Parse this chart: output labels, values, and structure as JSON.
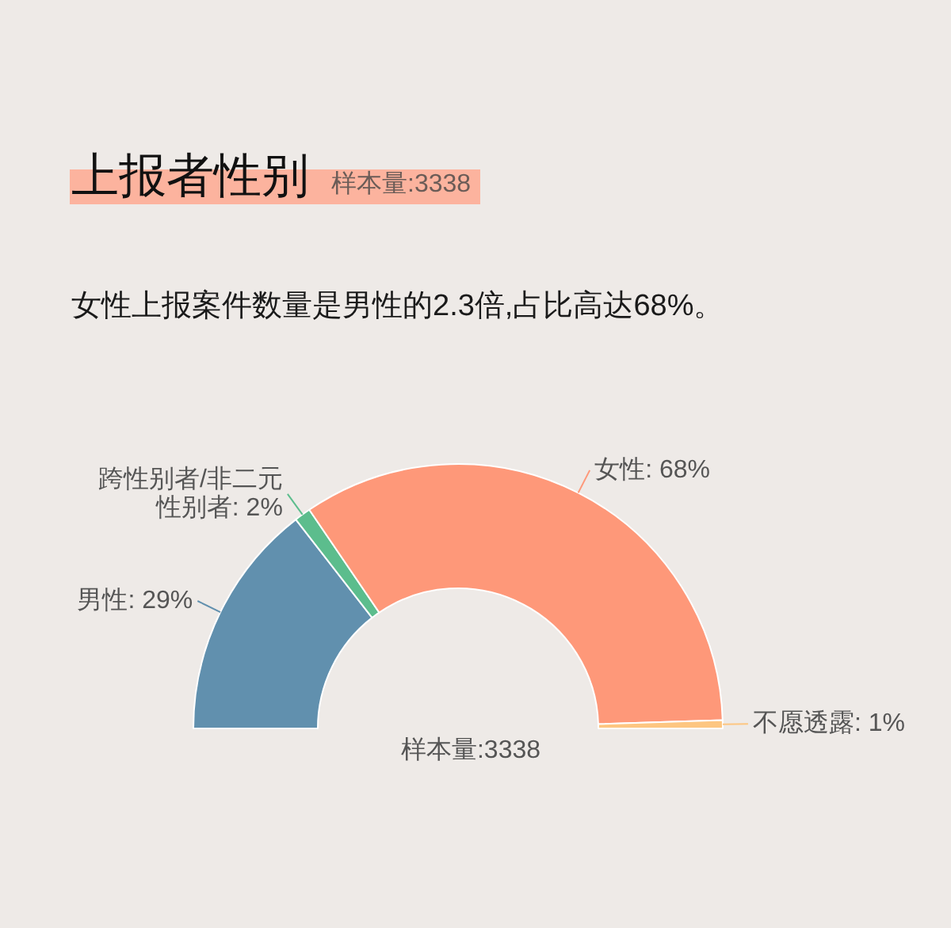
{
  "chart_data": {
    "type": "donut",
    "title": "上报者性别",
    "subtitle": "女性上报案件数量是男性的2.3倍,占比高达68%。",
    "categories": [
      "男性",
      "跨性别者/非二元性别者",
      "女性",
      "不愿透露"
    ],
    "values": [
      29,
      2,
      68,
      1
    ],
    "colors": [
      "#6190ae",
      "#5cbd8d",
      "#fe9879",
      "#fdc681"
    ],
    "value_labels": [
      "29%",
      "2%",
      "68%",
      "1%"
    ],
    "annotations": [
      "样本量:3338",
      "样本量:3338"
    ]
  }
}
